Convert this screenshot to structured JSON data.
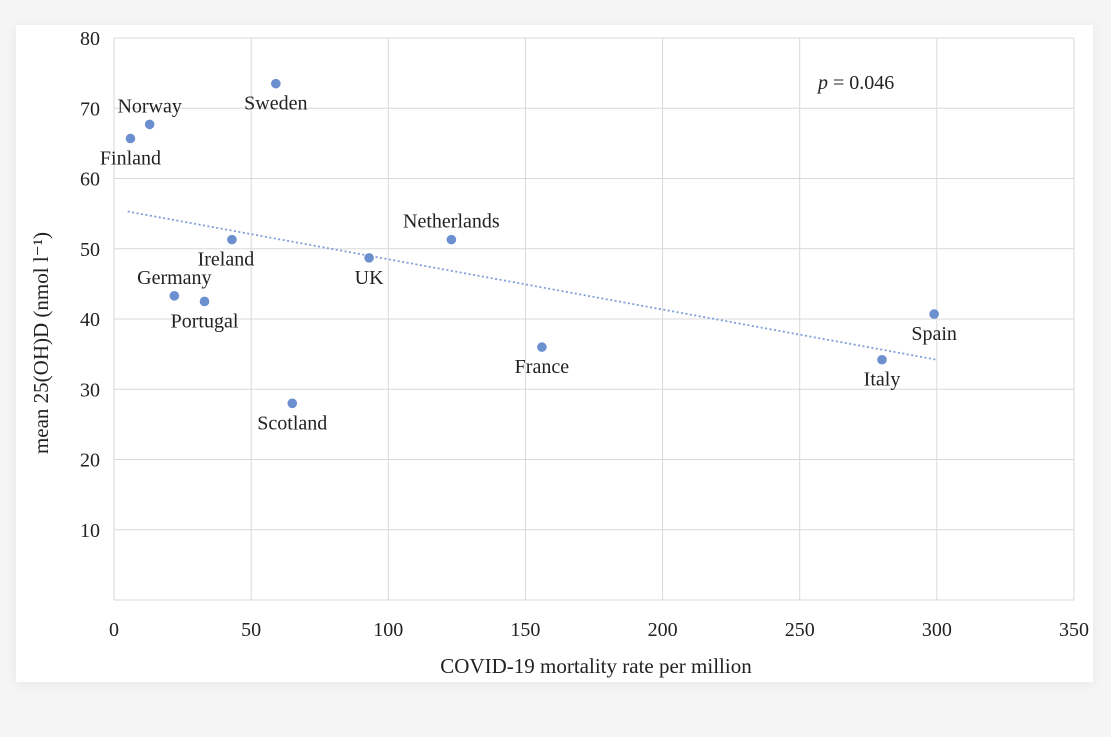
{
  "chart_data": {
    "type": "scatter",
    "title": "",
    "xlabel": "COVID-19 mortality rate per million",
    "ylabel": "mean 25(OH)D (nmol l⁻¹)",
    "xlim": [
      0,
      350
    ],
    "ylim": [
      0,
      80
    ],
    "xticks": [
      "0",
      "50",
      "100",
      "150",
      "200",
      "250",
      "300",
      "350"
    ],
    "yticks": [
      "10",
      "20",
      "30",
      "40",
      "50",
      "60",
      "70",
      "80"
    ],
    "grid": true,
    "annotation": {
      "prefix": "p",
      "text": " = 0.046"
    },
    "trendline": {
      "x": [
        5,
        300
      ],
      "y": [
        55.3,
        34.2
      ],
      "style": "dotted"
    },
    "points": [
      {
        "label": "Finland",
        "x": 6,
        "y": 65.7,
        "label_pos": "below"
      },
      {
        "label": "Norway",
        "x": 13,
        "y": 67.7,
        "label_pos": "above"
      },
      {
        "label": "Sweden",
        "x": 59,
        "y": 73.5,
        "label_pos": "below"
      },
      {
        "label": "Ireland",
        "x": 43,
        "y": 51.3,
        "label_pos": "below-left"
      },
      {
        "label": "Germany",
        "x": 22,
        "y": 43.3,
        "label_pos": "above"
      },
      {
        "label": "Portugal",
        "x": 33,
        "y": 42.5,
        "label_pos": "below"
      },
      {
        "label": "UK",
        "x": 93,
        "y": 48.7,
        "label_pos": "below"
      },
      {
        "label": "Netherlands",
        "x": 123,
        "y": 51.3,
        "label_pos": "above"
      },
      {
        "label": "Scotland",
        "x": 65,
        "y": 28,
        "label_pos": "below"
      },
      {
        "label": "France",
        "x": 156,
        "y": 36,
        "label_pos": "below"
      },
      {
        "label": "Italy",
        "x": 280,
        "y": 34.2,
        "label_pos": "below"
      },
      {
        "label": "Spain",
        "x": 299,
        "y": 40.7,
        "label_pos": "below"
      }
    ],
    "marker_color": "#6b8fcf",
    "trend_color": "#7e9fd8"
  }
}
